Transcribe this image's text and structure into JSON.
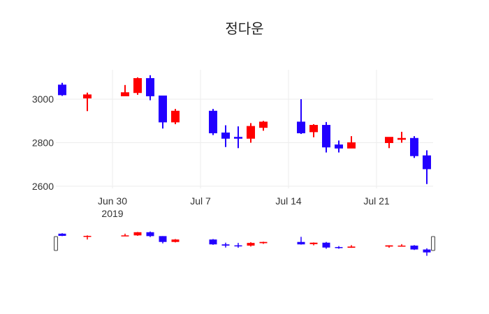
{
  "chart_data": {
    "type": "candlestick",
    "title": "정다운",
    "xlabel": "",
    "ylabel": "",
    "ylim": [
      2590,
      3135
    ],
    "x_range": [
      "2019-06-25T12:00",
      "2019-07-25T12:00"
    ],
    "y_ticks": [
      {
        "value": 2600,
        "label": "2600"
      },
      {
        "value": 2800,
        "label": "2800"
      },
      {
        "value": 3000,
        "label": "3000"
      }
    ],
    "x_ticks": [
      {
        "date": "2019-06-30",
        "label": "Jun 30",
        "sublabel": "2019"
      },
      {
        "date": "2019-07-07",
        "label": "Jul 7",
        "sublabel": ""
      },
      {
        "date": "2019-07-14",
        "label": "Jul 14",
        "sublabel": ""
      },
      {
        "date": "2019-07-21",
        "label": "Jul 21",
        "sublabel": ""
      }
    ],
    "colors": {
      "increasing": "#ff0000",
      "decreasing": "#2200ff"
    },
    "grid": true,
    "legend": "none",
    "rangeslider": true,
    "data": [
      {
        "date": "2019-06-26",
        "open": 3065,
        "high": 3075,
        "low": 3015,
        "close": 3020
      },
      {
        "date": "2019-06-28",
        "open": 3005,
        "high": 3030,
        "low": 2945,
        "close": 3020
      },
      {
        "date": "2019-07-01",
        "open": 3015,
        "high": 3065,
        "low": 3015,
        "close": 3030
      },
      {
        "date": "2019-07-02",
        "open": 3030,
        "high": 3100,
        "low": 3020,
        "close": 3095
      },
      {
        "date": "2019-07-03",
        "open": 3095,
        "high": 3110,
        "low": 2995,
        "close": 3015
      },
      {
        "date": "2019-07-04",
        "open": 3015,
        "high": 3015,
        "low": 2865,
        "close": 2895
      },
      {
        "date": "2019-07-05",
        "open": 2895,
        "high": 2955,
        "low": 2885,
        "close": 2945
      },
      {
        "date": "2019-07-08",
        "open": 2945,
        "high": 2955,
        "low": 2835,
        "close": 2845
      },
      {
        "date": "2019-07-09",
        "open": 2845,
        "high": 2880,
        "low": 2780,
        "close": 2820
      },
      {
        "date": "2019-07-10",
        "open": 2825,
        "high": 2875,
        "low": 2775,
        "close": 2820
      },
      {
        "date": "2019-07-11",
        "open": 2820,
        "high": 2890,
        "low": 2800,
        "close": 2875
      },
      {
        "date": "2019-07-12",
        "open": 2870,
        "high": 2900,
        "low": 2855,
        "close": 2895
      },
      {
        "date": "2019-07-15",
        "open": 2895,
        "high": 3000,
        "low": 2840,
        "close": 2845
      },
      {
        "date": "2019-07-16",
        "open": 2850,
        "high": 2885,
        "low": 2825,
        "close": 2880
      },
      {
        "date": "2019-07-17",
        "open": 2880,
        "high": 2895,
        "low": 2755,
        "close": 2780
      },
      {
        "date": "2019-07-18",
        "open": 2790,
        "high": 2810,
        "low": 2755,
        "close": 2775
      },
      {
        "date": "2019-07-19",
        "open": 2775,
        "high": 2830,
        "low": 2775,
        "close": 2800
      },
      {
        "date": "2019-07-22",
        "open": 2800,
        "high": 2825,
        "low": 2775,
        "close": 2825
      },
      {
        "date": "2019-07-23",
        "open": 2815,
        "high": 2850,
        "low": 2800,
        "close": 2820
      },
      {
        "date": "2019-07-24",
        "open": 2820,
        "high": 2830,
        "low": 2730,
        "close": 2740
      },
      {
        "date": "2019-07-25",
        "open": 2740,
        "high": 2765,
        "low": 2610,
        "close": 2680
      }
    ]
  }
}
